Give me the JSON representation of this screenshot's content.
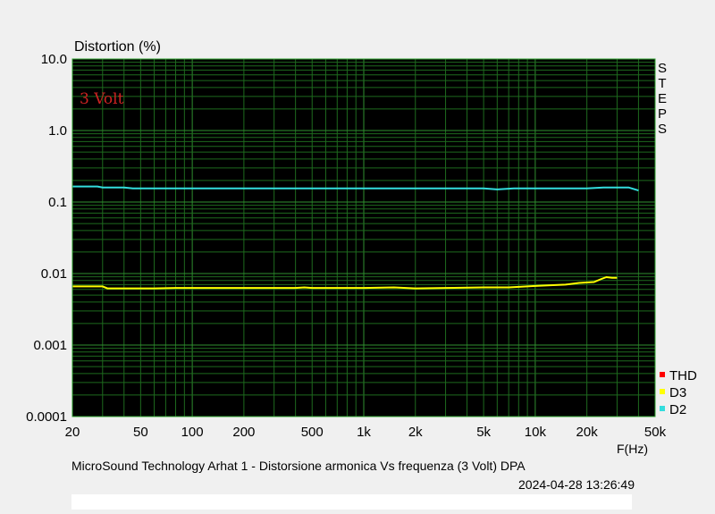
{
  "chart_data": {
    "type": "line",
    "title": "Distortion (%)",
    "annotation": "3 Volt",
    "xlabel": "F(Hz)",
    "x_scale": "log",
    "y_scale": "log",
    "xlim": [
      20,
      50000
    ],
    "ylim": [
      0.0001,
      10
    ],
    "x_ticks": [
      20,
      50,
      100,
      200,
      500,
      1000,
      2000,
      5000,
      10000,
      20000,
      50000
    ],
    "x_tick_labels": [
      "20",
      "50",
      "100",
      "200",
      "500",
      "1k",
      "2k",
      "5k",
      "10k",
      "20k",
      "50k"
    ],
    "y_ticks": [
      0.0001,
      0.001,
      0.01,
      0.1,
      1,
      10
    ],
    "y_tick_labels": [
      "0.0001",
      "0.001",
      "0.01",
      "0.1",
      "1.0",
      "10.0"
    ],
    "steps_label": "STEPS",
    "grid": true,
    "legend_position": "bottom-right",
    "series": [
      {
        "name": "THD",
        "color": "#ff0000",
        "x": [],
        "y": []
      },
      {
        "name": "D3",
        "color": "#ffff00",
        "x": [
          20,
          30,
          32,
          40,
          60,
          80,
          100,
          150,
          200,
          300,
          400,
          450,
          500,
          700,
          1000,
          1500,
          2000,
          3000,
          5000,
          7000,
          10000,
          15000,
          18000,
          22000,
          24000,
          26000,
          28000,
          30000
        ],
        "y": [
          0.0066,
          0.0066,
          0.0062,
          0.0062,
          0.0062,
          0.0063,
          0.0063,
          0.0063,
          0.0063,
          0.0063,
          0.0063,
          0.0064,
          0.0063,
          0.0063,
          0.0063,
          0.0064,
          0.0062,
          0.0063,
          0.0064,
          0.0064,
          0.0067,
          0.007,
          0.0074,
          0.0076,
          0.0083,
          0.0089,
          0.0087,
          0.0087
        ]
      },
      {
        "name": "D2",
        "color": "#33dddd",
        "x": [
          20,
          28,
          30,
          40,
          45,
          60,
          100,
          200,
          500,
          1000,
          2000,
          5000,
          6000,
          7500,
          10000,
          20000,
          25000,
          30000,
          35000,
          40000
        ],
        "y": [
          0.165,
          0.165,
          0.16,
          0.16,
          0.155,
          0.155,
          0.155,
          0.155,
          0.155,
          0.155,
          0.155,
          0.155,
          0.15,
          0.155,
          0.155,
          0.155,
          0.16,
          0.16,
          0.16,
          0.145
        ]
      }
    ]
  },
  "footer": {
    "title": "MicroSound Technology Arhat 1 - Distorsione armonica Vs frequenza (3 Volt)      DPA",
    "datetime": "2024-04-28 13:26:49"
  }
}
